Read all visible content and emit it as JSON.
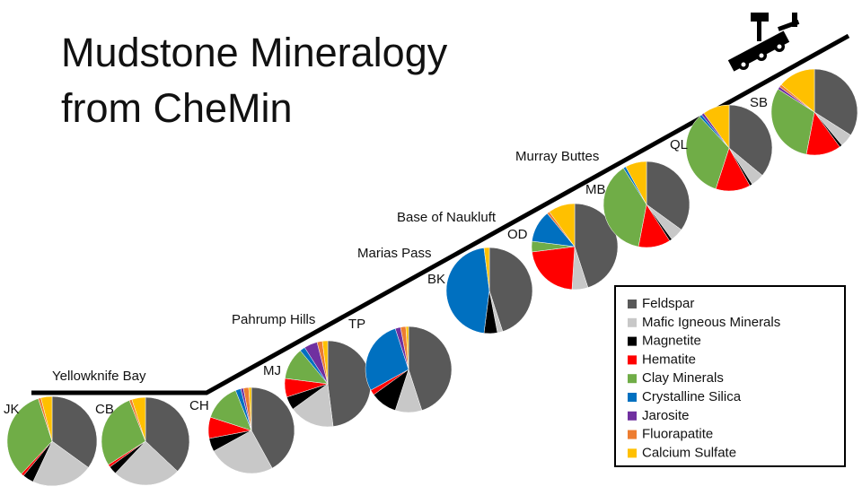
{
  "chart_data": {
    "type": "pie",
    "title": [
      "Mudstone Mineralogy",
      "from CheMin"
    ],
    "categories": [
      "Feldspar",
      "Mafic Igneous Minerals",
      "Magnetite",
      "Hematite",
      "Clay Minerals",
      "Crystalline Silica",
      "Jarosite",
      "Fluorapatite",
      "Calcium Sulfate"
    ],
    "colors": [
      "#595959",
      "#c8c8c8",
      "#000000",
      "#ff0000",
      "#70ad47",
      "#0070c0",
      "#7030a0",
      "#ed7d31",
      "#ffc000"
    ],
    "series": [
      {
        "name": "JK",
        "values": [
          35,
          22,
          4,
          1,
          33,
          0,
          0,
          1,
          4
        ]
      },
      {
        "name": "CB",
        "values": [
          37,
          25,
          3,
          1,
          28,
          0,
          0,
          1,
          5
        ]
      },
      {
        "name": "CH",
        "values": [
          42,
          25,
          5,
          8,
          14,
          2,
          1,
          2,
          1
        ]
      },
      {
        "name": "MJ",
        "values": [
          48,
          17,
          5,
          7,
          12,
          2,
          5,
          2,
          2
        ]
      },
      {
        "name": "TP",
        "values": [
          45,
          10,
          10,
          2,
          0,
          28,
          2,
          2,
          1
        ]
      },
      {
        "name": "BK",
        "values": [
          45,
          2,
          5,
          0,
          0,
          46,
          0,
          0,
          2
        ]
      },
      {
        "name": "OD",
        "values": [
          45,
          6,
          0,
          22,
          4,
          12,
          0,
          1,
          10
        ]
      },
      {
        "name": "MB",
        "values": [
          35,
          5,
          1,
          12,
          38,
          1,
          0,
          0,
          8
        ]
      },
      {
        "name": "QL",
        "values": [
          36,
          5,
          1,
          13,
          33,
          1,
          1,
          0,
          10
        ]
      },
      {
        "name": "SB",
        "values": [
          34,
          5,
          1,
          13,
          31,
          0,
          1,
          1,
          14
        ]
      }
    ],
    "annotations": [
      "Yellowknife Bay",
      "Pahrump Hills",
      "Marias Pass",
      "Base of Naukluft",
      "Murray Buttes"
    ]
  }
}
